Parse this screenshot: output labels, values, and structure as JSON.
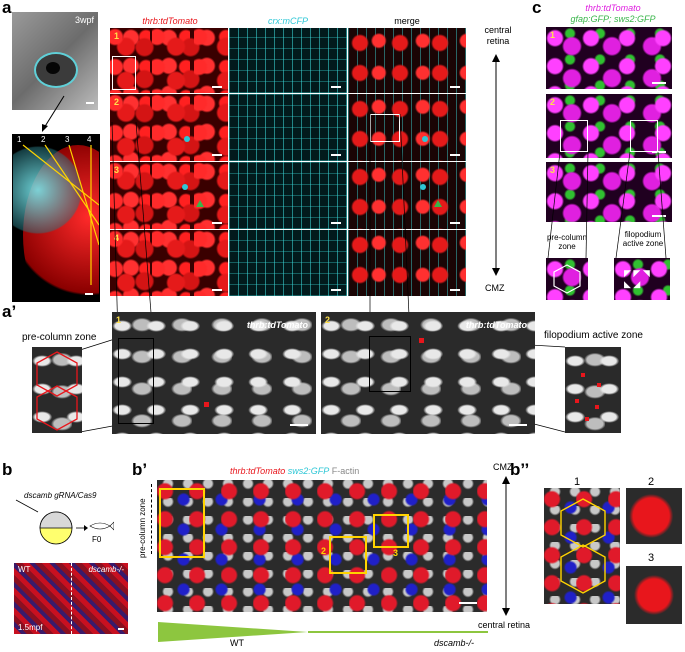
{
  "panel_a": {
    "label": "a",
    "age": "3wpf",
    "cols": [
      "thrb:tdTomato",
      "crx:mCFP",
      "merge"
    ],
    "rows": [
      "1",
      "2",
      "3",
      "4"
    ],
    "lines": [
      "1",
      "2",
      "3",
      "4"
    ],
    "central": "central\nretina",
    "cmz": "CMZ"
  },
  "panel_a2": {
    "label": "a’",
    "pre_column_zone": "pre-column zone",
    "image_labels": [
      "thrb:tdTomato",
      "thrb:tdTomato"
    ],
    "nums": [
      "1",
      "2"
    ],
    "filopodium_active_zone": "filopodium active zone"
  },
  "panel_c": {
    "label": "c",
    "title_line1": "thrb:tdTomato",
    "title_line2": "gfap:GFP; sws2:GFP",
    "nums": [
      "1",
      "2",
      "3"
    ],
    "pre_column_zone": "pre-column\nzone",
    "filopodium_active_zone": "filopodium\nactive zone"
  },
  "panel_b": {
    "label": "b",
    "construct": "dscamb gRNA/Cas9",
    "f0": "F0",
    "wt": "WT",
    "mutant": "dscamb-/-",
    "age": "1.5mpf"
  },
  "panel_b2": {
    "label": "b’",
    "legend_1": "thrb:tdTomato",
    "legend_2": "sws2:GFP",
    "legend_3": "F-actin",
    "pre_column_zone": "pre-column zone",
    "cmz": "CMZ",
    "central": "central retina",
    "box_nums": [
      "1",
      "2",
      "3"
    ],
    "wt": "WT",
    "mutant": "dscamb-/-"
  },
  "panel_b3": {
    "label": "b’’",
    "nums": [
      "1",
      "2",
      "3"
    ]
  },
  "colors": {
    "red": "#e8161c",
    "cyan": "#2ec7d6",
    "magenta": "#e020e0",
    "green": "#39b54a",
    "yellow": "#ffd400",
    "wedge": "#8dc63f"
  }
}
